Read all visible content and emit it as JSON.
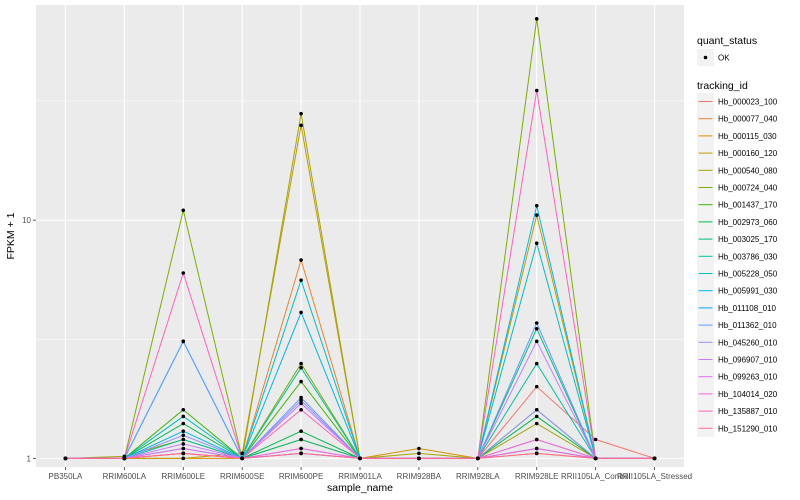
{
  "chart_data": {
    "type": "line",
    "xlabel": "sample_name",
    "ylabel": "FPKM + 1",
    "y_scale": "log10",
    "ylim": [
      0.92,
      80
    ],
    "y_ticks": [
      {
        "value": 1,
        "label": "1"
      },
      {
        "value": 10,
        "label": "10"
      }
    ],
    "grid": true,
    "categories": [
      "PB350LA",
      "RRIM600LA",
      "RRIM600LE",
      "RRIM600SE",
      "RRIM600PE",
      "RRIM901LA",
      "RRIM928BA",
      "RRIM928LA",
      "RRIM928LE",
      "RRII105LA_Control",
      "RRII105LA_Stressed"
    ],
    "shape_legend": {
      "title": "quant_status",
      "entries": [
        "OK"
      ]
    },
    "color_legend_title": "tracking_id",
    "series": [
      {
        "name": "Hb_000023_100",
        "color": "#F8766D",
        "values": [
          1.0,
          1.0,
          1.05,
          1.0,
          1.1,
          1.0,
          1.0,
          1.0,
          2.0,
          1.2,
          1.0
        ]
      },
      {
        "name": "Hb_000077_040",
        "color": "#EA8331",
        "values": [
          1.0,
          1.0,
          1.05,
          1.0,
          6.8,
          1.0,
          1.0,
          1.0,
          1.05,
          1.0,
          1.0
        ]
      },
      {
        "name": "Hb_000115_030",
        "color": "#D89000",
        "values": [
          1.0,
          1.0,
          1.0,
          1.0,
          1.2,
          1.0,
          1.1,
          1.0,
          1.2,
          1.0,
          1.0
        ]
      },
      {
        "name": "Hb_000160_120",
        "color": "#C09B00",
        "values": [
          1.0,
          1.0,
          1.0,
          1.05,
          25.0,
          1.0,
          1.0,
          1.0,
          10.5,
          1.0,
          1.0
        ]
      },
      {
        "name": "Hb_000540_080",
        "color": "#A3A500",
        "values": [
          1.0,
          1.02,
          1.2,
          1.0,
          28.0,
          1.0,
          1.05,
          1.0,
          1.4,
          1.0,
          1.0
        ]
      },
      {
        "name": "Hb_000724_040",
        "color": "#7CAE00",
        "values": [
          1.0,
          1.0,
          11.0,
          1.0,
          2.5,
          1.0,
          1.0,
          1.0,
          70.0,
          1.0,
          1.0
        ]
      },
      {
        "name": "Hb_001437_170",
        "color": "#39B600",
        "values": [
          1.0,
          1.0,
          1.6,
          1.0,
          2.1,
          1.0,
          1.0,
          1.0,
          1.6,
          1.0,
          1.0
        ]
      },
      {
        "name": "Hb_002973_060",
        "color": "#00BB4E",
        "values": [
          1.0,
          1.0,
          1.4,
          1.0,
          1.3,
          1.0,
          1.0,
          1.0,
          1.5,
          1.0,
          1.0
        ]
      },
      {
        "name": "Hb_003025_170",
        "color": "#00BF7D",
        "values": [
          1.0,
          1.0,
          1.1,
          1.0,
          1.2,
          1.0,
          1.0,
          1.0,
          3.5,
          1.0,
          1.0
        ]
      },
      {
        "name": "Hb_003786_030",
        "color": "#00C1A3",
        "values": [
          1.0,
          1.0,
          1.2,
          1.0,
          2.4,
          1.0,
          1.0,
          1.0,
          2.5,
          1.0,
          1.0
        ]
      },
      {
        "name": "Hb_005228_050",
        "color": "#00BFC4",
        "values": [
          1.0,
          1.0,
          1.5,
          1.0,
          5.6,
          1.0,
          1.0,
          1.0,
          8.0,
          1.0,
          1.0
        ]
      },
      {
        "name": "Hb_005991_030",
        "color": "#00B8E7",
        "values": [
          1.0,
          1.0,
          1.3,
          1.0,
          4.1,
          1.0,
          1.0,
          1.0,
          11.5,
          1.0,
          1.0
        ]
      },
      {
        "name": "Hb_011108_010",
        "color": "#00A9FF",
        "values": [
          1.0,
          1.0,
          3.1,
          1.0,
          1.05,
          1.0,
          1.0,
          1.0,
          1.1,
          1.0,
          1.0
        ]
      },
      {
        "name": "Hb_011362_010",
        "color": "#619CFF",
        "values": [
          1.0,
          1.0,
          3.1,
          1.0,
          1.8,
          1.0,
          1.0,
          1.0,
          3.7,
          1.0,
          1.0
        ]
      },
      {
        "name": "Hb_045260_010",
        "color": "#9590FF",
        "values": [
          1.0,
          1.0,
          1.25,
          1.0,
          1.75,
          1.0,
          1.0,
          1.0,
          1.6,
          1.0,
          1.0
        ]
      },
      {
        "name": "Hb_096907_010",
        "color": "#C77CFF",
        "values": [
          1.0,
          1.0,
          1.15,
          1.0,
          1.7,
          1.0,
          1.0,
          1.0,
          3.1,
          1.0,
          1.0
        ]
      },
      {
        "name": "Hb_099263_010",
        "color": "#E76BF3",
        "values": [
          1.0,
          1.0,
          1.1,
          1.0,
          1.1,
          1.0,
          1.0,
          1.0,
          1.2,
          1.0,
          1.0
        ]
      },
      {
        "name": "Hb_104014_020",
        "color": "#FA62DB",
        "values": [
          1.0,
          1.0,
          1.05,
          1.0,
          1.05,
          1.0,
          1.0,
          1.0,
          1.1,
          1.0,
          1.0
        ]
      },
      {
        "name": "Hb_135887_010",
        "color": "#FF62BC",
        "values": [
          1.0,
          1.0,
          6.0,
          1.0,
          1.6,
          1.0,
          1.0,
          1.0,
          35.0,
          1.0,
          1.0
        ]
      },
      {
        "name": "Hb_151290_010",
        "color": "#FF6C91",
        "values": [
          1.0,
          1.0,
          1.05,
          1.0,
          1.05,
          1.0,
          1.0,
          1.0,
          1.05,
          1.0,
          1.0
        ]
      }
    ]
  }
}
